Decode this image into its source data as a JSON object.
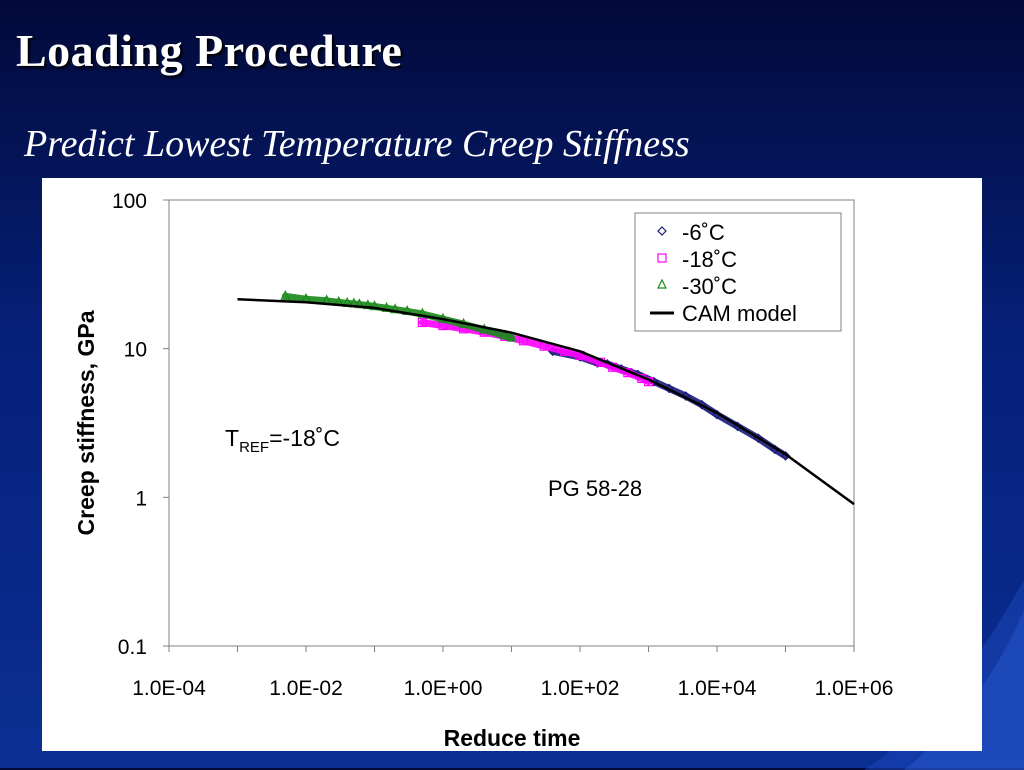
{
  "slide": {
    "title": "Loading Procedure",
    "subtitle": "Predict Lowest Temperature Creep Stiffness"
  },
  "chart_data": {
    "type": "scatter",
    "xscale": "log",
    "yscale": "log",
    "xlim": [
      0.0001,
      1000000
    ],
    "ylim": [
      0.1,
      100
    ],
    "xlabel": "Reduce time",
    "ylabel": "Creep stiffness, GPa",
    "xticks": [
      "1.0E-04",
      "1.0E-02",
      "1.0E+00",
      "1.0E+02",
      "1.0E+04",
      "1.0E+06"
    ],
    "yticks": [
      "0.1",
      "1",
      "10",
      "100"
    ],
    "grid": false,
    "legend_position": "top-right",
    "annotations": {
      "tref_main": "T",
      "tref_sub": "REF",
      "tref_rest": "=-18˚C",
      "binder": "PG 58-28"
    },
    "series": [
      {
        "name": "-6˚C",
        "marker": "diamond",
        "color": "#1a1a7a",
        "x": [
          40,
          100,
          180,
          250,
          400,
          700,
          1200,
          2000,
          3500,
          6000,
          10000,
          20000,
          40000,
          70000,
          100000
        ],
        "y": [
          9.6,
          8.8,
          8.0,
          7.9,
          7.3,
          6.7,
          6.0,
          5.4,
          4.8,
          4.2,
          3.6,
          3.0,
          2.5,
          2.1,
          1.9
        ]
      },
      {
        "name": "-18˚C",
        "marker": "square",
        "color": "#ff00ff",
        "x": [
          0.5,
          1,
          2,
          4,
          8,
          15,
          30,
          60,
          100,
          200,
          300,
          500,
          800,
          1000
        ],
        "y": [
          15.0,
          14.3,
          13.6,
          12.9,
          12.1,
          11.3,
          10.4,
          9.6,
          9.0,
          8.1,
          7.5,
          6.9,
          6.3,
          6.0
        ]
      },
      {
        "name": "-30˚C",
        "marker": "triangle",
        "color": "#1a8a1a",
        "x": [
          0.005,
          0.01,
          0.02,
          0.03,
          0.04,
          0.05,
          0.06,
          0.08,
          0.1,
          0.15,
          0.2,
          0.3,
          0.5,
          1,
          2,
          4,
          8,
          10
        ],
        "y": [
          22.5,
          21.5,
          21.0,
          20.5,
          20.2,
          20.0,
          19.8,
          19.5,
          19.2,
          18.7,
          18.3,
          17.8,
          17.1,
          15.8,
          14.6,
          13.4,
          12.2,
          11.8
        ]
      },
      {
        "name": "CAM model",
        "marker": "line",
        "color": "#000000",
        "x": [
          0.001,
          0.01,
          0.1,
          1,
          10,
          100,
          1000,
          10000,
          100000,
          1000000
        ],
        "y": [
          21.5,
          20.5,
          18.8,
          15.8,
          12.8,
          9.6,
          6.2,
          3.7,
          1.95,
          0.9
        ]
      }
    ]
  }
}
